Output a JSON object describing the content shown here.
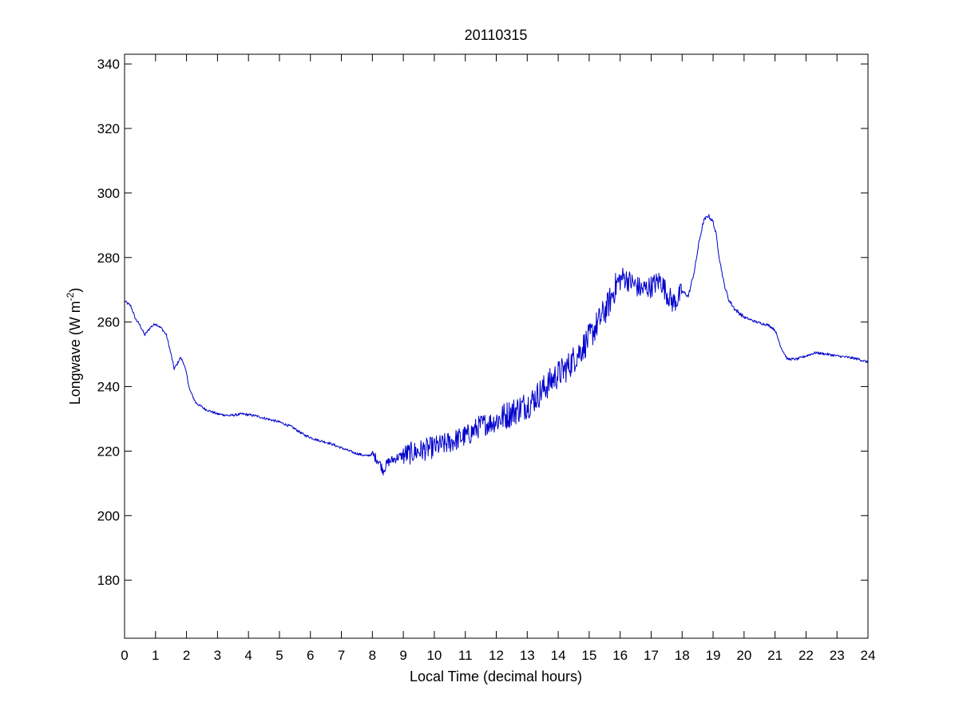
{
  "chart_data": {
    "type": "line",
    "title": "20110315",
    "xlabel": "Local Time (decimal hours)",
    "ylabel": {
      "main": "Longwave (W m",
      "sup": "-2",
      "close": ")"
    },
    "xlim": [
      0,
      24
    ],
    "ylim": [
      162,
      343
    ],
    "xticks": [
      0,
      1,
      2,
      3,
      4,
      5,
      6,
      7,
      8,
      9,
      10,
      11,
      12,
      13,
      14,
      15,
      16,
      17,
      18,
      19,
      20,
      21,
      22,
      23,
      24
    ],
    "yticks": [
      180,
      200,
      220,
      240,
      260,
      280,
      300,
      320,
      340
    ],
    "grid": false,
    "line_color": "#0000cc",
    "series": [
      {
        "x": [
          0,
          0.2,
          0.35,
          0.5,
          0.65,
          0.85,
          1.0,
          1.2,
          1.35,
          1.5,
          1.6,
          1.7,
          1.8,
          1.9,
          2.0,
          2.1,
          2.3,
          2.6,
          3.0,
          3.4,
          3.8,
          4.2,
          4.6,
          5.0,
          5.4,
          5.8,
          6.2,
          6.6,
          7.0,
          7.4,
          7.8,
          8.0,
          8.2,
          8.35,
          8.5,
          8.8,
          9.1,
          9.5,
          9.9,
          10.3,
          10.7,
          11.1,
          11.5,
          11.9,
          12.3,
          12.7,
          13.1,
          13.5,
          13.9,
          14.3,
          14.7,
          15.0,
          15.3,
          15.6,
          15.9,
          16.1,
          16.4,
          16.7,
          17.0,
          17.3,
          17.5,
          17.7,
          17.85,
          18.0,
          18.2,
          18.4,
          18.55,
          18.7,
          18.85,
          19.0,
          19.1,
          19.2,
          19.35,
          19.5,
          19.7,
          20.0,
          20.4,
          20.8,
          21.0,
          21.2,
          21.4,
          21.7,
          22.0,
          22.3,
          22.7,
          23.0,
          23.4,
          23.7,
          24.0
        ],
        "values": [
          266.5,
          265,
          261,
          259,
          256,
          258.5,
          259.5,
          258,
          256,
          250,
          245.5,
          247,
          249,
          247.5,
          244,
          239,
          235,
          233,
          231.5,
          231,
          231.5,
          231,
          230,
          229,
          227.5,
          225,
          223.5,
          222.5,
          221,
          219.5,
          218.5,
          219,
          217,
          214,
          216.5,
          218,
          219,
          220,
          221,
          222,
          223.5,
          225,
          228,
          229,
          231,
          233,
          235,
          239,
          243,
          246,
          251,
          255,
          260,
          265,
          272,
          274,
          272,
          270,
          271,
          273,
          269,
          266,
          267,
          269.5,
          268,
          276,
          285,
          291.5,
          293,
          291,
          287,
          280,
          272,
          267,
          264,
          261.5,
          260,
          259,
          257.5,
          252,
          248.5,
          248.5,
          249.5,
          250.5,
          250,
          249.5,
          249,
          248.5,
          247.5
        ]
      }
    ]
  }
}
